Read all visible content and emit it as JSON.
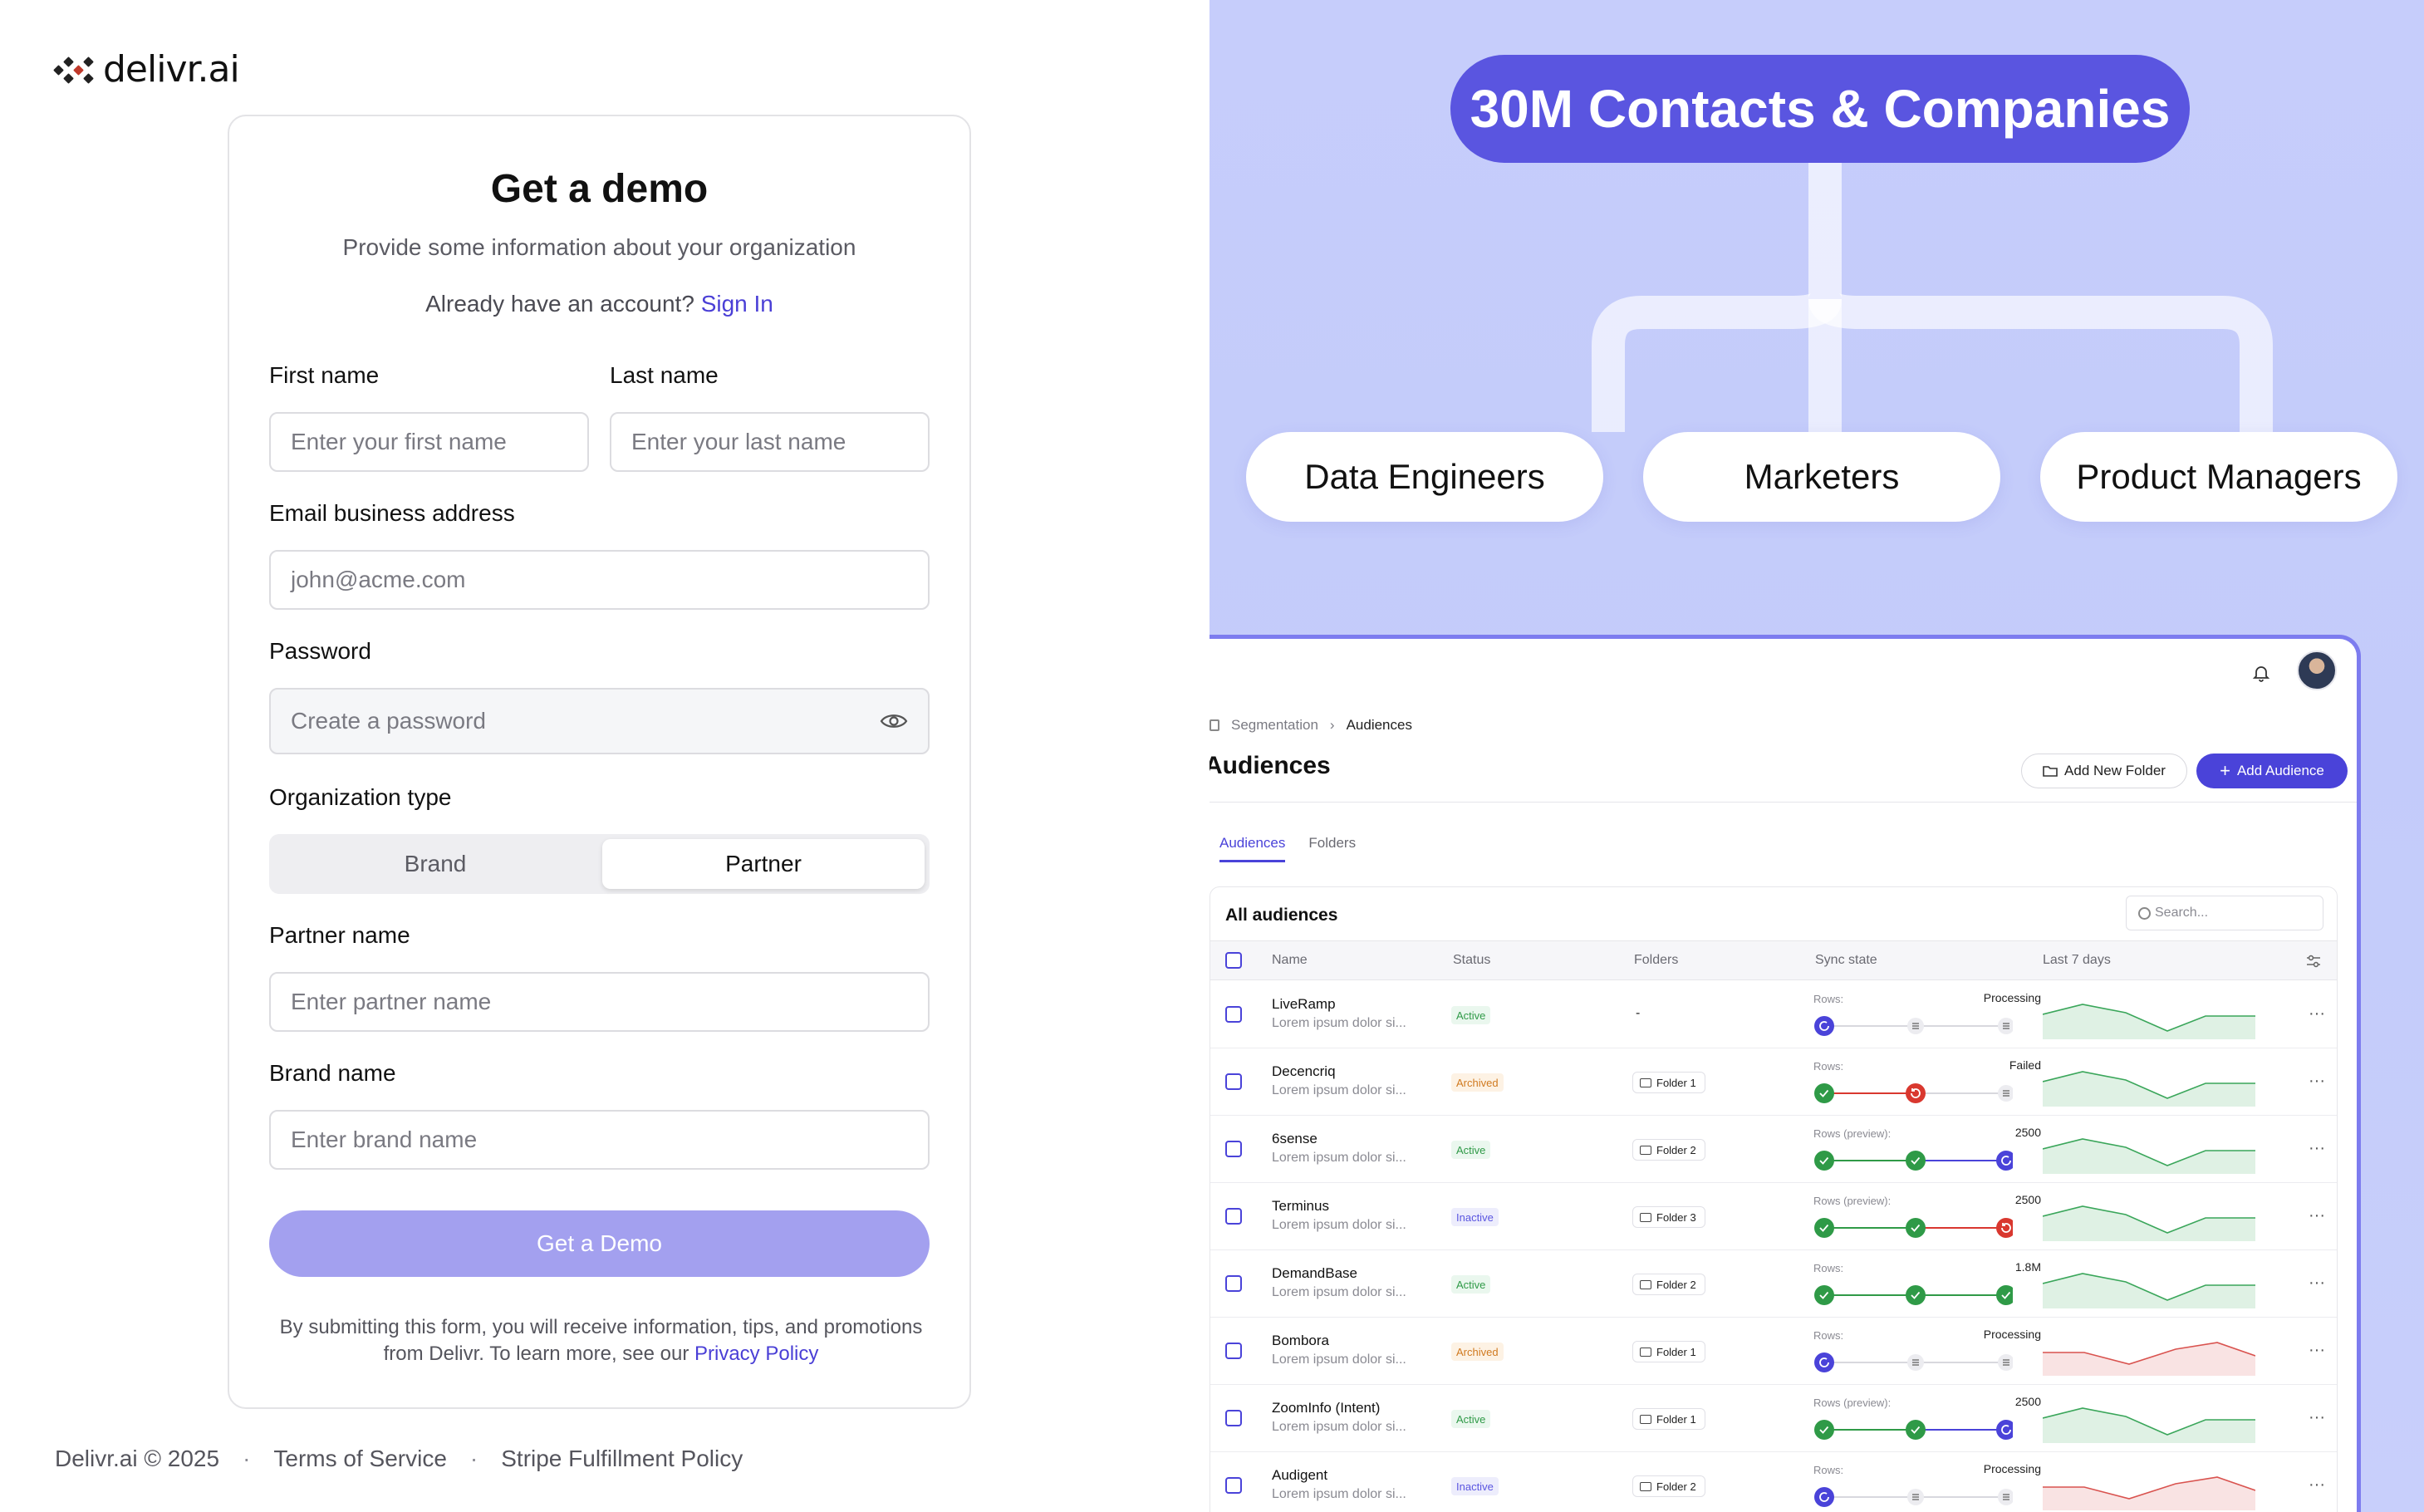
{
  "brand": {
    "logo_text": "delivr.ai"
  },
  "form": {
    "title": "Get a demo",
    "subtitle": "Provide some information about your organization",
    "account_prompt": "Already have an account?",
    "sign_in": "Sign In",
    "first_name": {
      "label": "First name",
      "placeholder": "Enter your first name"
    },
    "last_name": {
      "label": "Last name",
      "placeholder": "Enter your last name"
    },
    "email": {
      "label": "Email business address",
      "placeholder": "john@acme.com"
    },
    "password": {
      "label": "Password",
      "placeholder": "Create a password"
    },
    "org_type": {
      "label": "Organization type",
      "options": [
        "Brand",
        "Partner"
      ],
      "selected": "Partner"
    },
    "partner_name": {
      "label": "Partner name",
      "placeholder": "Enter partner name"
    },
    "brand_name": {
      "label": "Brand name",
      "placeholder": "Enter brand name"
    },
    "submit": "Get a Demo",
    "legal_text": "By submitting this form, you will receive information, tips, and promotions from Delivr. To learn more, see our",
    "privacy_link": "Privacy Policy"
  },
  "footer": {
    "copyright": "Delivr.ai © 2025",
    "terms": "Terms of Service",
    "stripe": "Stripe Fulfillment Policy",
    "separator": "·"
  },
  "hero": {
    "headline": "30M Contacts & Companies",
    "roles": [
      "Data Engineers",
      "Marketers",
      "Product Managers"
    ],
    "accent": "#5a55e0"
  },
  "app": {
    "breadcrumb": [
      "Segmentation",
      "Audiences"
    ],
    "breadcrumb_sep": "›",
    "title": "Audiences",
    "add_folder": "Add New Folder",
    "add_audience": "Add Audience",
    "tabs": [
      "Audiences",
      "Folders"
    ],
    "table_title": "All audiences",
    "search_placeholder": "Search...",
    "columns": [
      "Name",
      "Status",
      "Folders",
      "Sync state",
      "Last 7 days"
    ],
    "rows": [
      {
        "name": "LiveRamp",
        "desc": "Lorem ipsum dolor si...",
        "status": "Active",
        "folder": "-",
        "sync_label": "Rows:",
        "sync_value": "Processing",
        "steps": [
          "processing",
          "gray",
          "gray"
        ],
        "trend": "up"
      },
      {
        "name": "Decencriq",
        "desc": "Lorem ipsum dolor si...",
        "status": "Archived",
        "folder": "Folder 1",
        "sync_label": "Rows:",
        "sync_value": "Failed",
        "steps": [
          "ok",
          "fail",
          "gray"
        ],
        "trend": "up"
      },
      {
        "name": "6sense",
        "desc": "Lorem ipsum dolor si...",
        "status": "Active",
        "folder": "Folder 2",
        "sync_label": "Rows (preview):",
        "sync_value": "2500",
        "steps": [
          "ok",
          "ok",
          "processing"
        ],
        "trend": "up"
      },
      {
        "name": "Terminus",
        "desc": "Lorem ipsum dolor si...",
        "status": "Inactive",
        "folder": "Folder 3",
        "sync_label": "Rows (preview):",
        "sync_value": "2500",
        "steps": [
          "ok",
          "ok",
          "fail"
        ],
        "trend": "up"
      },
      {
        "name": "DemandBase",
        "desc": "Lorem ipsum dolor si...",
        "status": "Active",
        "folder": "Folder 2",
        "sync_label": "Rows:",
        "sync_value": "1.8M",
        "steps": [
          "ok",
          "ok",
          "ok"
        ],
        "trend": "up"
      },
      {
        "name": "Bombora",
        "desc": "Lorem ipsum dolor si...",
        "status": "Archived",
        "folder": "Folder 1",
        "sync_label": "Rows:",
        "sync_value": "Processing",
        "steps": [
          "processing",
          "gray",
          "gray"
        ],
        "trend": "down"
      },
      {
        "name": "ZoomInfo (Intent)",
        "desc": "Lorem ipsum dolor si...",
        "status": "Active",
        "folder": "Folder 1",
        "sync_label": "Rows (preview):",
        "sync_value": "2500",
        "steps": [
          "ok",
          "ok",
          "processing"
        ],
        "trend": "up"
      },
      {
        "name": "Audigent",
        "desc": "Lorem ipsum dolor si...",
        "status": "Inactive",
        "folder": "Folder 2",
        "sync_label": "Rows:",
        "sync_value": "Processing",
        "steps": [
          "processing",
          "gray",
          "gray"
        ],
        "trend": "down"
      }
    ]
  }
}
